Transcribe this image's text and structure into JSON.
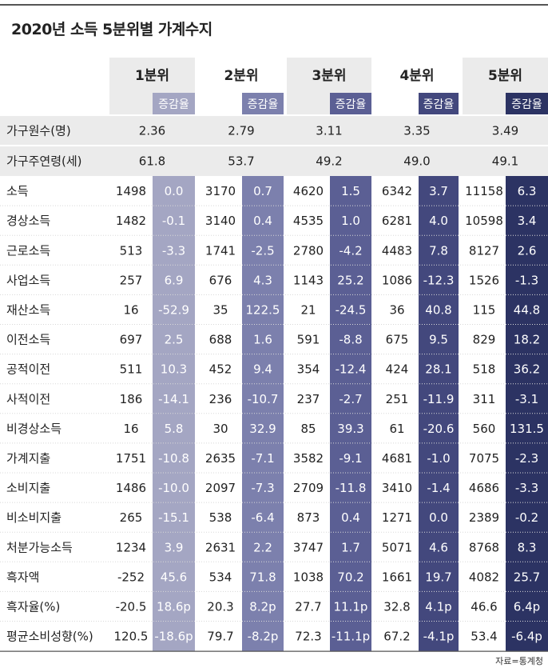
{
  "title": "2020년 소득 5분위별 가계수지",
  "source": "자료=통계청",
  "colors": {
    "header_bg": "#ebebeb",
    "rate_colors": [
      "#a4a6c3",
      "#7c80ad",
      "#5b5f94",
      "#43487d",
      "#2c3363"
    ],
    "text_dark": "#222222",
    "text_light": "#ffffff"
  },
  "chart_data": {
    "type": "table",
    "title": "2020년 소득 5분위별 가계수지",
    "quintiles": [
      "1분위",
      "2분위",
      "3분위",
      "4분위",
      "5분위"
    ],
    "change_label": "증감율",
    "meta_rows": [
      {
        "label": "가구원수(명)",
        "values": [
          "2.36",
          "2.79",
          "3.11",
          "3.35",
          "3.49"
        ]
      },
      {
        "label": "가구주연령(세)",
        "values": [
          "61.8",
          "53.7",
          "49.2",
          "49.0",
          "49.1"
        ]
      }
    ],
    "rows": [
      {
        "label": "소득",
        "cells": [
          [
            "1498",
            "0.0"
          ],
          [
            "3170",
            "0.7"
          ],
          [
            "4620",
            "1.5"
          ],
          [
            "6342",
            "3.7"
          ],
          [
            "11158",
            "6.3"
          ]
        ]
      },
      {
        "label": "경상소득",
        "cells": [
          [
            "1482",
            "-0.1"
          ],
          [
            "3140",
            "0.4"
          ],
          [
            "4535",
            "1.0"
          ],
          [
            "6281",
            "4.0"
          ],
          [
            "10598",
            "3.4"
          ]
        ]
      },
      {
        "label": "근로소득",
        "cells": [
          [
            "513",
            "-3.3"
          ],
          [
            "1741",
            "-2.5"
          ],
          [
            "2780",
            "-4.2"
          ],
          [
            "4483",
            "7.8"
          ],
          [
            "8127",
            "2.6"
          ]
        ]
      },
      {
        "label": "사업소득",
        "cells": [
          [
            "257",
            "6.9"
          ],
          [
            "676",
            "4.3"
          ],
          [
            "1143",
            "25.2"
          ],
          [
            "1086",
            "-12.3"
          ],
          [
            "1526",
            "-1.3"
          ]
        ]
      },
      {
        "label": "재산소득",
        "cells": [
          [
            "16",
            "-52.9"
          ],
          [
            "35",
            "122.5"
          ],
          [
            "21",
            "-24.5"
          ],
          [
            "36",
            "40.8"
          ],
          [
            "115",
            "44.8"
          ]
        ]
      },
      {
        "label": "이전소득",
        "cells": [
          [
            "697",
            "2.5"
          ],
          [
            "688",
            "1.6"
          ],
          [
            "591",
            "-8.8"
          ],
          [
            "675",
            "9.5"
          ],
          [
            "829",
            "18.2"
          ]
        ]
      },
      {
        "label": "공적이전",
        "cells": [
          [
            "511",
            "10.3"
          ],
          [
            "452",
            "9.4"
          ],
          [
            "354",
            "-12.4"
          ],
          [
            "424",
            "28.1"
          ],
          [
            "518",
            "36.2"
          ]
        ]
      },
      {
        "label": "사적이전",
        "cells": [
          [
            "186",
            "-14.1"
          ],
          [
            "236",
            "-10.7"
          ],
          [
            "237",
            "-2.7"
          ],
          [
            "251",
            "-11.9"
          ],
          [
            "311",
            "-3.1"
          ]
        ]
      },
      {
        "label": "비경상소득",
        "cells": [
          [
            "16",
            "5.8"
          ],
          [
            "30",
            "32.9"
          ],
          [
            "85",
            "39.3"
          ],
          [
            "61",
            "-20.6"
          ],
          [
            "560",
            "131.5"
          ]
        ]
      },
      {
        "label": "가계지출",
        "cells": [
          [
            "1751",
            "-10.8"
          ],
          [
            "2635",
            "-7.1"
          ],
          [
            "3582",
            "-9.1"
          ],
          [
            "4681",
            "-1.0"
          ],
          [
            "7075",
            "-2.3"
          ]
        ]
      },
      {
        "label": "소비지출",
        "cells": [
          [
            "1486",
            "-10.0"
          ],
          [
            "2097",
            "-7.3"
          ],
          [
            "2709",
            "-11.8"
          ],
          [
            "3410",
            "-1.4"
          ],
          [
            "4686",
            "-3.3"
          ]
        ]
      },
      {
        "label": "비소비지출",
        "cells": [
          [
            "265",
            "-15.1"
          ],
          [
            "538",
            "-6.4"
          ],
          [
            "873",
            "0.4"
          ],
          [
            "1271",
            "0.0"
          ],
          [
            "2389",
            "-0.2"
          ]
        ]
      },
      {
        "label": "처분가능소득",
        "cells": [
          [
            "1234",
            "3.9"
          ],
          [
            "2631",
            "2.2"
          ],
          [
            "3747",
            "1.7"
          ],
          [
            "5071",
            "4.6"
          ],
          [
            "8768",
            "8.3"
          ]
        ]
      },
      {
        "label": "흑자액",
        "cells": [
          [
            "-252",
            "45.6"
          ],
          [
            "534",
            "71.8"
          ],
          [
            "1038",
            "70.2"
          ],
          [
            "1661",
            "19.7"
          ],
          [
            "4082",
            "25.7"
          ]
        ]
      },
      {
        "label": "흑자율(%)",
        "cells": [
          [
            "-20.5",
            "18.6p"
          ],
          [
            "20.3",
            "8.2p"
          ],
          [
            "27.7",
            "11.1p"
          ],
          [
            "32.8",
            "4.1p"
          ],
          [
            "46.6",
            "6.4p"
          ]
        ]
      },
      {
        "label": "평균소비성향(%)",
        "cells": [
          [
            "120.5",
            "-18.6p"
          ],
          [
            "79.7",
            "-8.2p"
          ],
          [
            "72.3",
            "-11.1p"
          ],
          [
            "67.2",
            "-4.1p"
          ],
          [
            "53.4",
            "-6.4p"
          ]
        ]
      }
    ]
  }
}
